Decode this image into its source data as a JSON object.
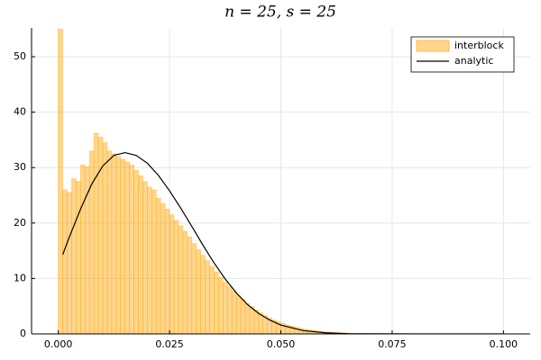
{
  "chart_data": {
    "type": "histogram",
    "title": "n = 25, s = 25",
    "xlim": [
      -0.006,
      0.106
    ],
    "ylim": [
      0,
      55.2
    ],
    "xticks": [
      {
        "value": 0,
        "label": "0.000"
      },
      {
        "value": 0.025,
        "label": "0.025"
      },
      {
        "value": 0.05,
        "label": "0.050"
      },
      {
        "value": 0.075,
        "label": "0.075"
      },
      {
        "value": 0.1,
        "label": "0.100"
      }
    ],
    "yticks": [
      0,
      10,
      20,
      30,
      40,
      50
    ],
    "grid": true,
    "legend": "top-right",
    "series": [
      {
        "name": "interblock",
        "type": "histogram",
        "color": "#ffa500",
        "bins": [
          0,
          0.001,
          0.002,
          0.003,
          0.004,
          0.005,
          0.006,
          0.007,
          0.008,
          0.009,
          0.01,
          0.011,
          0.012,
          0.013,
          0.014,
          0.015,
          0.016,
          0.017,
          0.018,
          0.019,
          0.02,
          0.021,
          0.022,
          0.023,
          0.024,
          0.025,
          0.026,
          0.027,
          0.028,
          0.029,
          0.03,
          0.031,
          0.032,
          0.033,
          0.034,
          0.035,
          0.036,
          0.037,
          0.038,
          0.039,
          0.04,
          0.041,
          0.042,
          0.043,
          0.044,
          0.045,
          0.046,
          0.047,
          0.048,
          0.049,
          0.05,
          0.051,
          0.052,
          0.053,
          0.054,
          0.055,
          0.056,
          0.057,
          0.058,
          0.059,
          0.06,
          0.061,
          0.062,
          0.063,
          0.064,
          0.065,
          0.066,
          0.067,
          0.068,
          0.069,
          0.07
        ],
        "values": [
          55,
          26,
          25.5,
          28,
          27.5,
          30.5,
          30.2,
          33,
          36.2,
          35.5,
          34.5,
          33,
          32.5,
          32,
          31.5,
          31,
          30.5,
          29.5,
          28.5,
          27.5,
          26.5,
          26,
          24.5,
          23.5,
          22.5,
          21.5,
          20.5,
          19.5,
          18.5,
          17.5,
          16.3,
          15.2,
          14.2,
          13.2,
          12.2,
          11.2,
          10.2,
          9.3,
          8.5,
          7.7,
          6.9,
          6.2,
          5.5,
          4.9,
          4.3,
          3.8,
          3.3,
          2.9,
          2.5,
          2.2,
          1.9,
          1.6,
          1.4,
          1.2,
          1,
          0.85,
          0.7,
          0.6,
          0.5,
          0.4,
          0.35,
          0.3,
          0.25,
          0.2,
          0.15,
          0.12,
          0.1,
          0.08,
          0.06,
          0.05
        ]
      },
      {
        "name": "analytic",
        "type": "line",
        "color": "#000000",
        "x": [
          0.001,
          0.0025,
          0.005,
          0.0075,
          0.01,
          0.0125,
          0.015,
          0.0175,
          0.02,
          0.0225,
          0.025,
          0.0275,
          0.03,
          0.0325,
          0.035,
          0.0375,
          0.04,
          0.0425,
          0.045,
          0.0475,
          0.05,
          0.055,
          0.06,
          0.065,
          0.07,
          0.08,
          0.1
        ],
        "values": [
          14.3,
          17.5,
          22.5,
          27,
          30.3,
          32.2,
          32.7,
          32.2,
          30.8,
          28.6,
          25.8,
          22.7,
          19.4,
          16,
          12.8,
          9.9,
          7.4,
          5.3,
          3.7,
          2.5,
          1.6,
          0.6,
          0.2,
          0.05,
          0.02,
          0,
          0
        ]
      }
    ]
  }
}
